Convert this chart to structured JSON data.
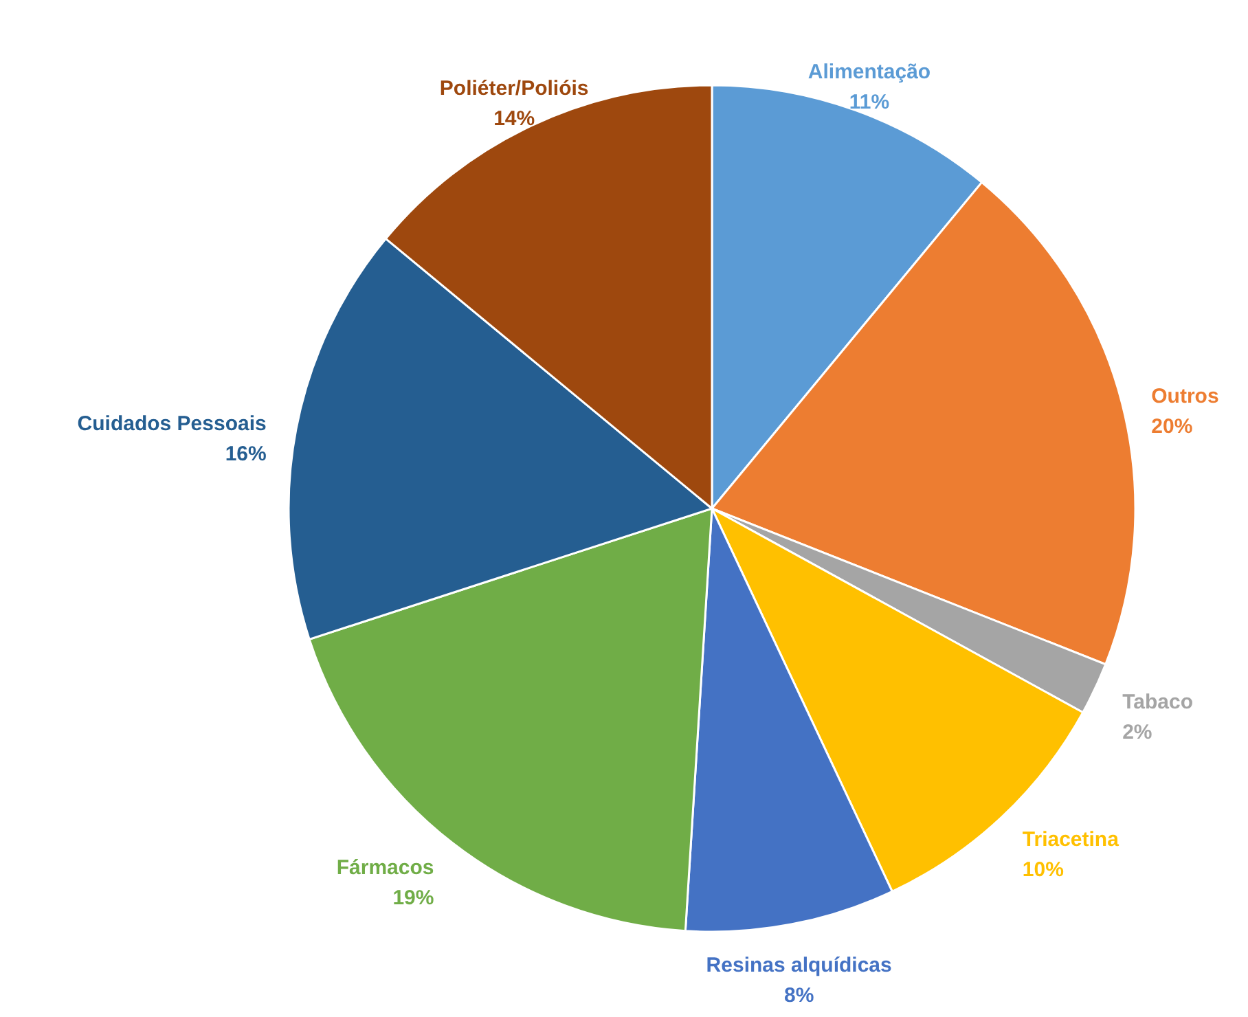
{
  "chart_data": {
    "type": "pie",
    "categories": [
      "Alimentação",
      "Outros",
      "Tabaco",
      "Triacetina",
      "Resinas alquídicas",
      "Fármacos",
      "Cuidados Pessoais",
      "Poliéter/Polióis"
    ],
    "values": [
      11,
      20,
      2,
      10,
      8,
      19,
      16,
      14
    ],
    "value_labels": [
      "11%",
      "20%",
      "2%",
      "10%",
      "8%",
      "19%",
      "16%",
      "14%"
    ],
    "colors": [
      "#5b9bd5",
      "#ed7d31",
      "#a5a5a5",
      "#ffc000",
      "#4472c4",
      "#70ad47",
      "#255e91",
      "#9e480e"
    ]
  }
}
